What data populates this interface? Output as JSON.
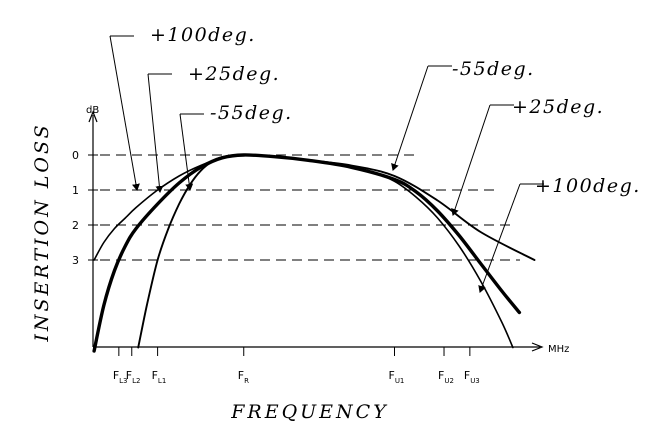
{
  "chart_data": {
    "type": "line",
    "xlabel": "FREQUENCY",
    "ylabel": "INSERTION LOSS",
    "x_unit": "MHz",
    "y_unit": "dB",
    "y_inverted": true,
    "ylim": [
      0,
      5.6
    ],
    "y_ticks": [
      "0",
      "1",
      "2",
      "3"
    ],
    "y_ticks_values": [
      0,
      1,
      2,
      3
    ],
    "grid": "dashed horizontal reference lines at 0, 1, 2 and 3 dB",
    "x_ticks": [
      {
        "base": "F",
        "sub": "L3"
      },
      {
        "base": "F",
        "sub": "L2"
      },
      {
        "base": "F",
        "sub": "L1"
      },
      {
        "base": "F",
        "sub": "R"
      },
      {
        "base": "F",
        "sub": "U1"
      },
      {
        "base": "F",
        "sub": "U2"
      },
      {
        "base": "F",
        "sub": "U3"
      }
    ],
    "x_ticks_order": [
      1.2,
      1.8,
      3.0,
      7.0,
      14.0,
      16.3,
      17.5
    ],
    "xlim": [
      0,
      21.5
    ],
    "series": [
      {
        "name": "+100deg.",
        "stroke_width": 1.6,
        "x": [
          0.05,
          0.5,
          1.0,
          1.5,
          2.0,
          3.0,
          4.0,
          5.0,
          6.0,
          7.0,
          8.5,
          10.0,
          11.5,
          13.0,
          14.0,
          15.0,
          16.0,
          17.0,
          18.0,
          19.0,
          19.5
        ],
        "y": [
          3.0,
          2.5,
          2.1,
          1.8,
          1.5,
          1.0,
          0.6,
          0.3,
          0.08,
          0.0,
          0.05,
          0.15,
          0.3,
          0.5,
          0.75,
          1.2,
          1.8,
          2.6,
          3.6,
          4.8,
          5.5
        ]
      },
      {
        "name": "+25deg.",
        "stroke_width": 3.4,
        "x": [
          0.05,
          0.5,
          1.0,
          1.5,
          2.0,
          3.0,
          4.0,
          5.0,
          6.0,
          7.0,
          8.5,
          10.0,
          12.0,
          14.0,
          15.0,
          16.0,
          17.0,
          18.0,
          19.0,
          19.8
        ],
        "y": [
          5.6,
          4.3,
          3.3,
          2.6,
          2.1,
          1.4,
          0.8,
          0.35,
          0.08,
          0.0,
          0.05,
          0.15,
          0.35,
          0.7,
          1.05,
          1.6,
          2.3,
          3.1,
          3.9,
          4.5
        ]
      },
      {
        "name": "-55deg.",
        "stroke_width": 1.9,
        "x": [
          2.1,
          2.5,
          3.0,
          3.5,
          4.0,
          4.5,
          5.0,
          5.5,
          6.0,
          7.0,
          8.5,
          10.0,
          12.0,
          14.0,
          16.0,
          18.0,
          20.5
        ],
        "y": [
          5.5,
          4.3,
          3.0,
          2.1,
          1.4,
          0.85,
          0.45,
          0.2,
          0.06,
          0.0,
          0.05,
          0.15,
          0.3,
          0.6,
          1.3,
          2.2,
          3.0
        ]
      }
    ],
    "annotations": [
      {
        "text": "+100deg.",
        "series": "+100deg.",
        "side": "lower"
      },
      {
        "text": "+25deg.",
        "series": "+25deg.",
        "side": "lower"
      },
      {
        "text": "-55deg.",
        "series": "-55deg.",
        "side": "lower"
      },
      {
        "text": "-55deg.",
        "series": "-55deg.",
        "side": "upper"
      },
      {
        "text": "+25deg.",
        "series": "+25deg.",
        "side": "upper"
      },
      {
        "text": "+100deg.",
        "series": "+100deg.",
        "side": "upper"
      }
    ]
  }
}
